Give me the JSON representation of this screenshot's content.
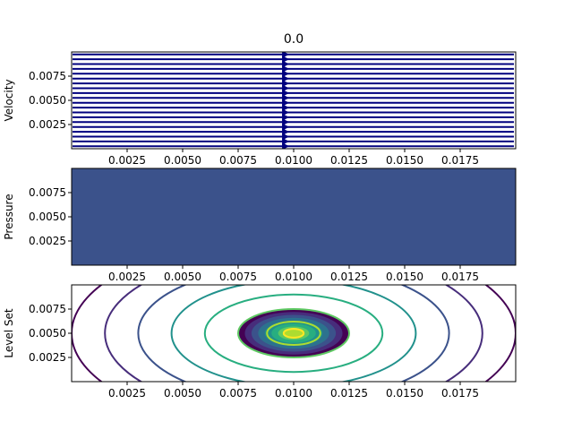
{
  "figure": {
    "title": "0.0"
  },
  "colors": {
    "velocity_lines": "#00007f",
    "pressure_fill": "#3b528b",
    "axes_edge": "#000000",
    "viridis": [
      "#440154",
      "#472d7b",
      "#3b528b",
      "#2c728e",
      "#21918c",
      "#28ae80",
      "#5ec962",
      "#addc30",
      "#fde725"
    ]
  },
  "chart_data": [
    {
      "type": "quiver",
      "name": "velocity",
      "title": "0.0",
      "ylabel": "Velocity",
      "xlabel": "",
      "xlim": [
        0.0,
        0.02
      ],
      "ylim": [
        0.0,
        0.01
      ],
      "xticks": [
        "0.0025",
        "0.0050",
        "0.0075",
        "0.0100",
        "0.0125",
        "0.0150",
        "0.0175"
      ],
      "yticks": [
        "0.0025",
        "0.0050",
        "0.0075"
      ],
      "xtick_values": [
        0.0025,
        0.005,
        0.0075,
        0.01,
        0.0125,
        0.015,
        0.0175
      ],
      "ytick_values": [
        0.0025,
        0.005,
        0.0075
      ],
      "streamline_y": [
        0.00025,
        0.00075,
        0.00125,
        0.00175,
        0.00225,
        0.00275,
        0.00325,
        0.00375,
        0.00425,
        0.00475,
        0.00525,
        0.00575,
        0.00625,
        0.00675,
        0.00725,
        0.00775,
        0.00825,
        0.00875,
        0.00925,
        0.00975
      ],
      "arrow_x": 0.0096,
      "direction": "+x"
    },
    {
      "type": "heatmap",
      "name": "pressure",
      "ylabel": "Pressure",
      "xlabel": "",
      "xlim": [
        0.0,
        0.02
      ],
      "ylim": [
        0.0,
        0.01
      ],
      "xticks": [
        "0.0025",
        "0.0050",
        "0.0075",
        "0.0100",
        "0.0125",
        "0.0150",
        "0.0175"
      ],
      "yticks": [
        "0.0025",
        "0.0050",
        "0.0075"
      ],
      "xtick_values": [
        0.0025,
        0.005,
        0.0075,
        0.01,
        0.0125,
        0.015,
        0.0175
      ],
      "ytick_values": [
        0.0025,
        0.005,
        0.0075
      ],
      "uniform_value": 0
    },
    {
      "type": "contour",
      "name": "level-set",
      "ylabel": "Level Set",
      "xlabel": "",
      "xlim": [
        0.0,
        0.02
      ],
      "ylim": [
        0.0,
        0.01
      ],
      "xticks": [
        "0.0025",
        "0.0050",
        "0.0075",
        "0.0100",
        "0.0125",
        "0.0150",
        "0.0175"
      ],
      "yticks": [
        "0.0025",
        "0.0050",
        "0.0075"
      ],
      "xtick_values": [
        0.0025,
        0.005,
        0.0075,
        0.01,
        0.0125,
        0.015,
        0.0175
      ],
      "ytick_values": [
        0.0025,
        0.005,
        0.0075
      ],
      "center": [
        0.01,
        0.005
      ],
      "outer_line_radii": [
        0.01,
        0.0085,
        0.007,
        0.0055,
        0.004
      ],
      "outer_line_color_index": [
        0,
        1,
        2,
        4,
        5
      ],
      "filled_radii": [
        0.0025,
        0.0022,
        0.0019,
        0.0016,
        0.0013,
        0.001,
        0.0007
      ],
      "filled_color_index": [
        0,
        1,
        2,
        3,
        4,
        5,
        6
      ],
      "inner_line_radii": [
        0.0025,
        0.0012,
        0.00045
      ],
      "inner_line_color_index": [
        6,
        7,
        8
      ],
      "core_radius": 0.00045,
      "core_color_index": 7
    }
  ]
}
